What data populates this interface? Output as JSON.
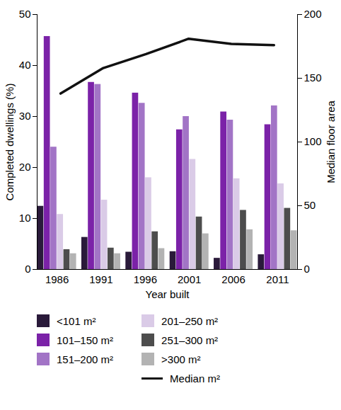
{
  "chart_data": {
    "type": "bar",
    "x_label": "Year built",
    "y_label": "Completed dwellings (%)",
    "y2_label": "Median floor area",
    "categories": [
      "1986",
      "1991",
      "1996",
      "2001",
      "2006",
      "2011"
    ],
    "series": [
      {
        "name": "<101 m²",
        "color": "#2a1a3a",
        "type": "bar",
        "values": [
          12.4,
          6.3,
          3.4,
          3.5,
          2.2,
          2.9
        ]
      },
      {
        "name": "101–150 m²",
        "color": "#7b22a8",
        "type": "bar",
        "values": [
          45.7,
          36.7,
          34.6,
          27.4,
          30.9,
          28.4
        ]
      },
      {
        "name": "151–200 m²",
        "color": "#a274c6",
        "type": "bar",
        "values": [
          24.0,
          36.3,
          32.6,
          30.0,
          29.3,
          32.1
        ]
      },
      {
        "name": "201–250 m²",
        "color": "#dacbe7",
        "type": "bar",
        "values": [
          10.8,
          13.6,
          18.0,
          21.6,
          17.8,
          16.8
        ]
      },
      {
        "name": "251–300 m²",
        "color": "#4d4d4d",
        "type": "bar",
        "values": [
          3.9,
          4.2,
          7.4,
          10.3,
          11.6,
          12.0
        ]
      },
      {
        "name": ">300 m²",
        "color": "#b3b3b3",
        "type": "bar",
        "values": [
          3.1,
          3.1,
          4.1,
          7.0,
          7.8,
          7.6
        ]
      },
      {
        "name": "Median m²",
        "color": "#111111",
        "type": "line",
        "axis": "y2",
        "values": [
          138,
          158,
          169,
          181,
          177,
          176
        ]
      }
    ],
    "ylim": [
      0,
      50
    ],
    "yticks": [
      0,
      10,
      20,
      30,
      40,
      50
    ],
    "y2lim": [
      0,
      200
    ],
    "y2ticks": [
      0,
      50,
      100,
      150,
      200
    ],
    "grid": false,
    "legend": "bottom"
  }
}
